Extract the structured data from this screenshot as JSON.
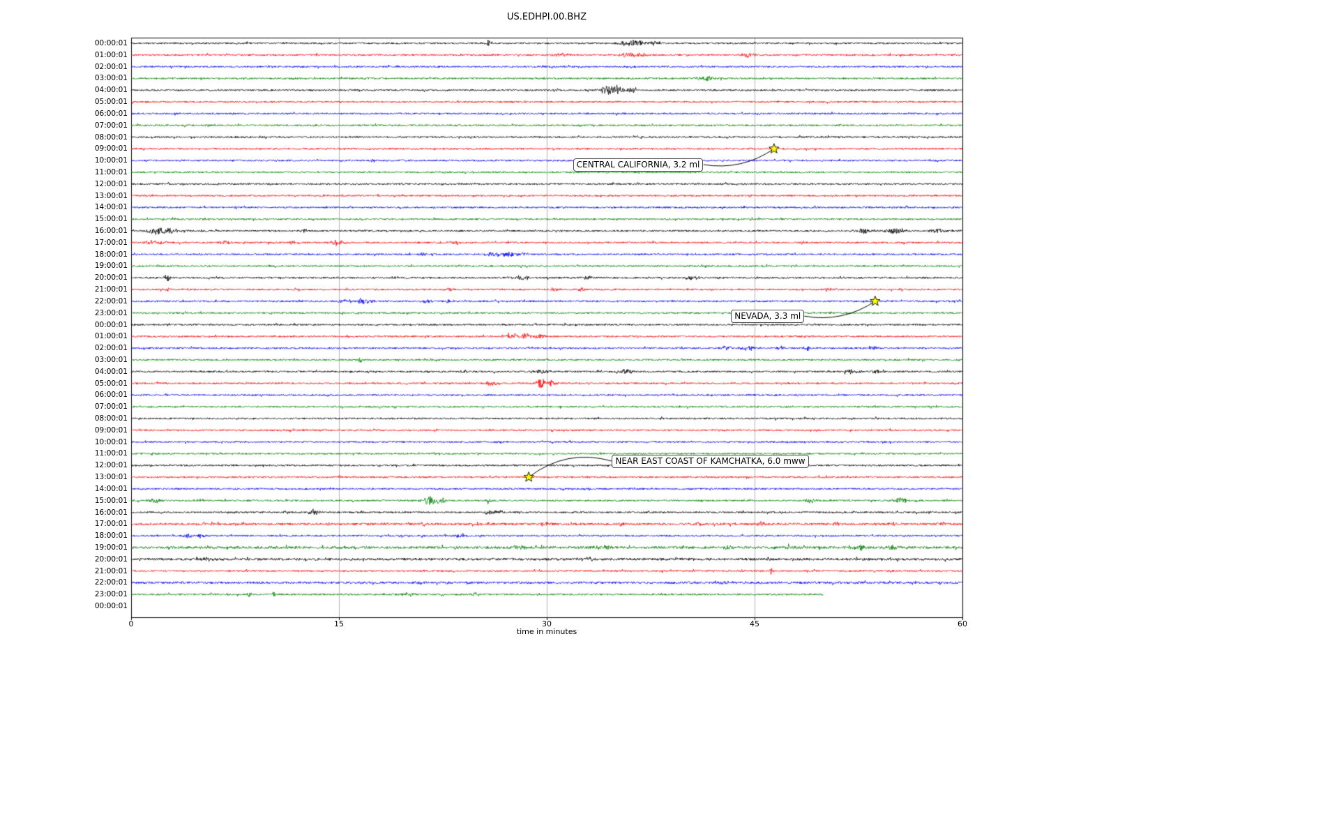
{
  "chart_data": {
    "type": "line",
    "variant": "helicorder-seismogram",
    "title": "US.EDHPI.00.BHZ",
    "xlabel": "time in minutes",
    "xlim": [
      0,
      60
    ],
    "x_ticks": [
      0,
      15,
      30,
      45,
      60
    ],
    "grid": "vertical-only",
    "grid_color": "#b0b0b0",
    "background_color": "#ffffff",
    "trace_color_cycle": [
      "#000000",
      "#ff0000",
      "#0000ff",
      "#008000"
    ],
    "star_marker_color": "#ffff00",
    "rows": [
      {
        "label": "00:00:01",
        "bursts": [
          [
            25.8,
            5,
            0.15
          ],
          [
            36.2,
            4,
            0.8
          ],
          [
            37.8,
            3,
            0.3
          ]
        ]
      },
      {
        "label": "01:00:01",
        "bursts": [
          [
            31.0,
            2.5,
            0.4
          ],
          [
            36.0,
            3.5,
            0.5
          ],
          [
            36.9,
            2.5,
            0.3
          ],
          [
            44.5,
            3,
            0.4
          ]
        ]
      },
      {
        "label": "02:00:01",
        "bursts": [
          [
            36.0,
            1.5,
            0.3
          ]
        ]
      },
      {
        "label": "03:00:01",
        "bursts": [
          [
            41.5,
            3,
            0.5
          ]
        ]
      },
      {
        "label": "04:00:01",
        "bursts": [
          [
            34.2,
            5,
            0.3
          ],
          [
            35.0,
            7,
            0.5
          ],
          [
            35.9,
            4,
            0.4
          ]
        ]
      },
      {
        "label": "05:00:01",
        "bursts": []
      },
      {
        "label": "06:00:01",
        "bursts": []
      },
      {
        "label": "07:00:01",
        "bursts": []
      },
      {
        "label": "08:00:01",
        "bursts": []
      },
      {
        "label": "09:00:01",
        "bursts": []
      },
      {
        "label": "10:00:01",
        "bursts": []
      },
      {
        "label": "11:00:01",
        "bursts": []
      },
      {
        "label": "12:00:01",
        "bursts": []
      },
      {
        "label": "13:00:01",
        "bursts": []
      },
      {
        "label": "14:00:01",
        "bursts": []
      },
      {
        "label": "15:00:01",
        "bursts": []
      },
      {
        "label": "16:00:01",
        "bursts": [
          [
            1.8,
            6,
            0.5
          ],
          [
            2.7,
            4,
            0.3
          ],
          [
            3.6,
            3,
            0.3
          ],
          [
            12.6,
            3,
            0.2
          ],
          [
            52.8,
            3.5,
            0.4
          ],
          [
            55.2,
            4,
            0.5
          ],
          [
            58.2,
            3,
            0.4
          ]
        ]
      },
      {
        "label": "17:00:01",
        "bursts": [
          [
            1.5,
            3,
            0.4
          ],
          [
            2.3,
            3,
            0.3
          ],
          [
            6.8,
            2.5,
            0.3
          ],
          [
            11.7,
            3,
            0.3
          ],
          [
            14.8,
            3.5,
            0.4
          ],
          [
            23.4,
            2.5,
            0.3
          ]
        ]
      },
      {
        "label": "18:00:01",
        "bursts": [
          [
            21.0,
            2,
            0.2
          ],
          [
            26.3,
            3.5,
            0.4
          ],
          [
            27.2,
            4,
            0.3
          ],
          [
            28.2,
            3,
            0.3
          ]
        ]
      },
      {
        "label": "19:00:01",
        "bursts": []
      },
      {
        "label": "20:00:01",
        "bursts": [
          [
            2.6,
            6,
            0.15
          ],
          [
            28.2,
            3,
            0.5
          ],
          [
            33.0,
            2.5,
            0.3
          ],
          [
            40.5,
            2.5,
            0.4
          ]
        ]
      },
      {
        "label": "21:00:01",
        "bursts": [
          [
            2.6,
            4,
            0.15
          ],
          [
            23.0,
            2.5,
            0.2
          ],
          [
            30.5,
            2.5,
            0.3
          ],
          [
            32.5,
            2.5,
            0.2
          ],
          [
            50.3,
            2.5,
            0.2
          ]
        ]
      },
      {
        "label": "22:00:01",
        "bursts": [
          [
            15.4,
            3,
            0.3
          ],
          [
            16.8,
            4,
            0.4
          ],
          [
            21.4,
            3,
            0.3
          ],
          [
            23.0,
            2.5,
            0.2
          ]
        ]
      },
      {
        "label": "23:00:01",
        "bursts": []
      },
      {
        "label": "00:00:01",
        "bursts": []
      },
      {
        "label": "01:00:01",
        "bursts": [
          [
            27.6,
            4,
            0.4
          ],
          [
            28.5,
            4,
            0.3
          ],
          [
            29.5,
            3,
            0.3
          ]
        ]
      },
      {
        "label": "02:00:01",
        "bursts": [
          [
            43.0,
            2.5,
            0.3
          ],
          [
            44.6,
            3,
            0.4
          ],
          [
            47.0,
            2.5,
            0.3
          ],
          [
            48.8,
            6,
            0.12
          ],
          [
            53.5,
            3,
            0.3
          ]
        ]
      },
      {
        "label": "03:00:01",
        "bursts": [
          [
            16.5,
            3.5,
            0.15
          ]
        ]
      },
      {
        "label": "04:00:01",
        "bursts": [
          [
            24.0,
            2,
            0.3
          ],
          [
            29.7,
            3.5,
            0.4
          ],
          [
            35.8,
            3,
            0.4
          ],
          [
            52.0,
            3,
            0.4
          ],
          [
            53.8,
            3,
            0.3
          ]
        ]
      },
      {
        "label": "05:00:01",
        "bursts": [
          [
            26.0,
            3,
            0.3
          ],
          [
            29.6,
            7,
            0.3
          ],
          [
            30.3,
            4,
            0.3
          ]
        ]
      },
      {
        "label": "06:00:01",
        "bursts": []
      },
      {
        "label": "07:00:01",
        "bursts": []
      },
      {
        "label": "08:00:01",
        "bursts": []
      },
      {
        "label": "09:00:01",
        "bursts": []
      },
      {
        "label": "10:00:01",
        "bursts": []
      },
      {
        "label": "11:00:01",
        "bursts": []
      },
      {
        "label": "12:00:01",
        "bursts": []
      },
      {
        "label": "13:00:01",
        "bursts": []
      },
      {
        "label": "14:00:01",
        "bursts": []
      },
      {
        "label": "15:00:01",
        "bursts": [
          [
            1.8,
            3,
            0.4
          ],
          [
            21.5,
            6,
            0.4
          ],
          [
            22.3,
            5,
            0.3
          ],
          [
            25.8,
            4.5,
            0.12
          ],
          [
            49.0,
            3,
            0.3
          ],
          [
            55.5,
            3.5,
            0.4
          ]
        ]
      },
      {
        "label": "16:00:01",
        "bursts": [
          [
            13.2,
            3.5,
            0.3
          ],
          [
            25.8,
            4,
            0.2
          ],
          [
            26.5,
            2.5,
            0.3
          ]
        ]
      },
      {
        "label": "17:00:01",
        "amp": 1.3,
        "bursts": [
          [
            21.0,
            3,
            0.2
          ],
          [
            25.0,
            3,
            0.2
          ],
          [
            30.0,
            3,
            0.2
          ],
          [
            35.5,
            3.5,
            0.2
          ],
          [
            41.0,
            3,
            0.2
          ],
          [
            45.5,
            3.5,
            0.2
          ],
          [
            51.0,
            3,
            0.2
          ],
          [
            55.0,
            3,
            0.2
          ],
          [
            58.5,
            3,
            0.2
          ]
        ]
      },
      {
        "label": "18:00:01",
        "bursts": [
          [
            4.0,
            3,
            0.3
          ],
          [
            5.0,
            3.5,
            0.2
          ],
          [
            23.8,
            3,
            0.3
          ]
        ]
      },
      {
        "label": "19:00:01",
        "amp": 1.5,
        "bursts": [
          [
            28.0,
            2.5,
            0.4
          ],
          [
            34.0,
            2.5,
            0.4
          ],
          [
            43.0,
            3,
            0.4
          ],
          [
            47.5,
            2.5,
            0.3
          ],
          [
            52.5,
            3,
            0.4
          ],
          [
            55.0,
            2.5,
            0.3
          ]
        ]
      },
      {
        "label": "20:00:01",
        "amp": 1.4,
        "bursts": [
          [
            5.5,
            2,
            0.4
          ],
          [
            33.0,
            2.5,
            0.5
          ],
          [
            40.0,
            2,
            0.4
          ],
          [
            46.0,
            2,
            0.3
          ]
        ]
      },
      {
        "label": "21:00:01",
        "bursts": [
          [
            46.2,
            6,
            0.12
          ]
        ]
      },
      {
        "label": "22:00:01",
        "amp": 1.3,
        "bursts": [
          [
            21.0,
            2,
            0.3
          ],
          [
            43.0,
            2,
            0.3
          ]
        ]
      },
      {
        "label": "23:00:01",
        "end": 50,
        "bursts": [
          [
            8.5,
            3,
            0.2
          ],
          [
            10.3,
            4.5,
            0.12
          ],
          [
            20.0,
            3,
            0.3
          ],
          [
            24.8,
            3.5,
            0.25
          ]
        ]
      },
      {
        "label": "00:00:01",
        "end": 0,
        "bursts": []
      }
    ],
    "annotations": [
      {
        "text": "CENTRAL CALIFORNIA, 3.2 ml",
        "star_row": 9,
        "star_minute": 46.4,
        "label_row": 10.35,
        "label_minute": 31.9,
        "attach": "right",
        "rad": 0.2
      },
      {
        "text": "NEVADA, 3.3 ml",
        "star_row": 22,
        "star_minute": 53.7,
        "label_row": 23.27,
        "label_minute": 43.3,
        "attach": "right",
        "rad": 0.2
      },
      {
        "text": "NEAR EAST COAST OF KAMCHATKA, 6.0 mww",
        "star_row": 37,
        "star_minute": 28.7,
        "label_row": 35.63,
        "label_minute": 34.7,
        "attach": "left",
        "rad": 0.25
      }
    ]
  }
}
